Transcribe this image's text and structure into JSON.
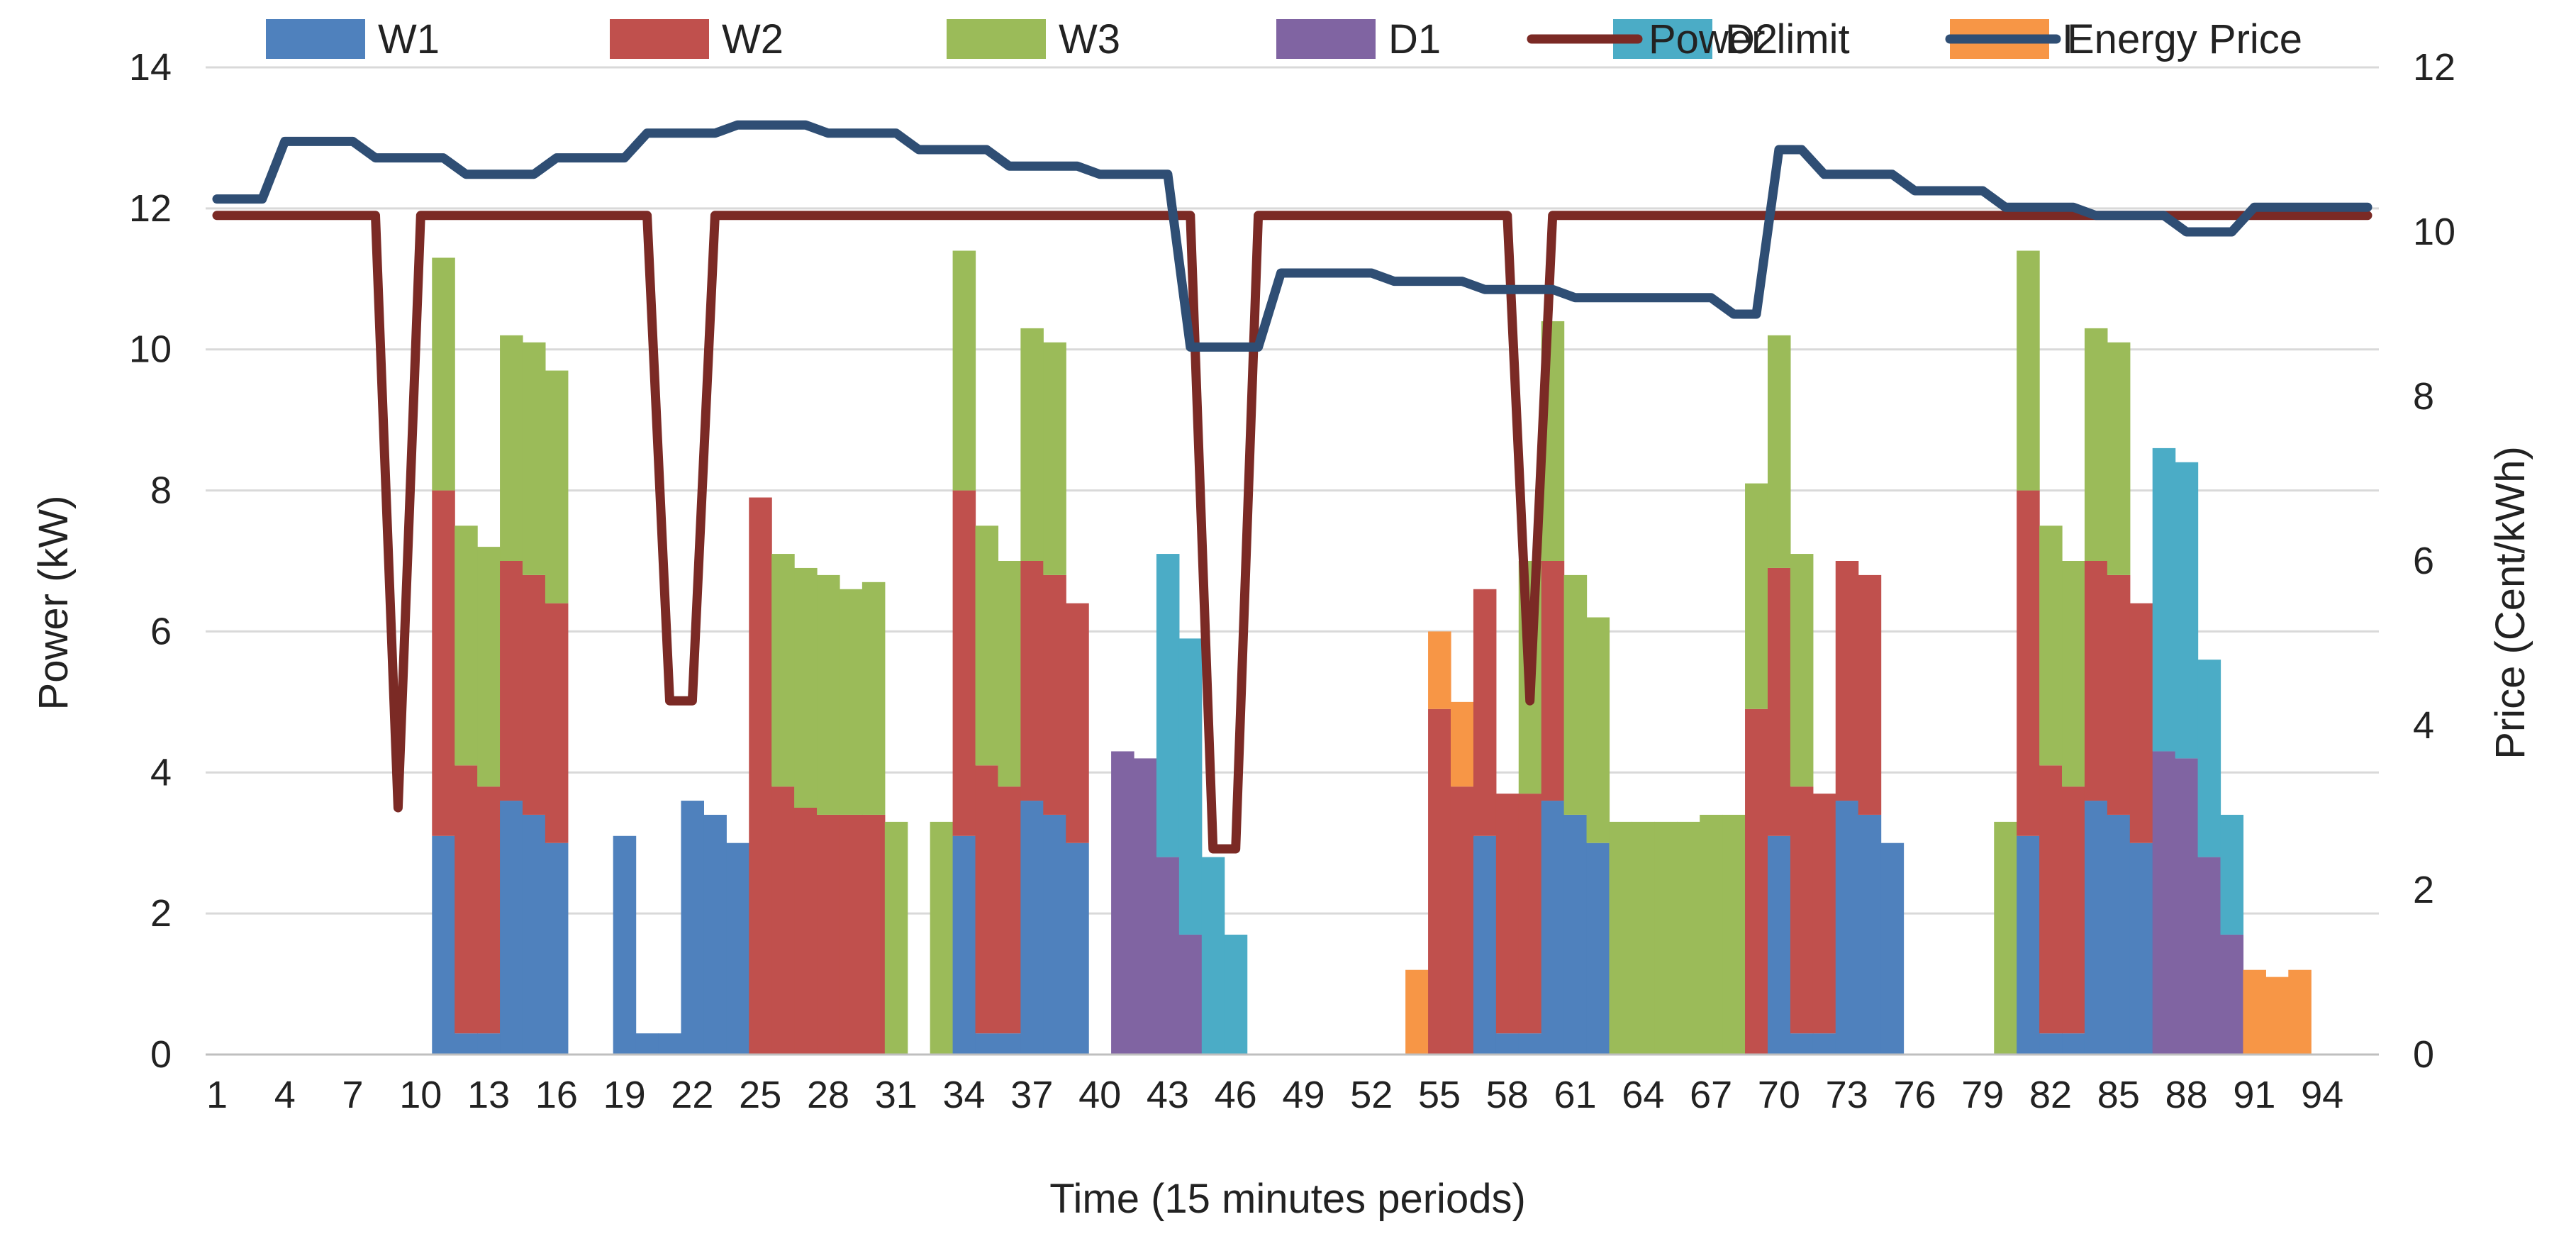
{
  "chart_data": {
    "type": "bar",
    "stacked": true,
    "xlabel": "Time (15 minutes periods)",
    "ylabel": "Power (kW)",
    "y2label": "Price (Cent/kWh)",
    "ylim": [
      0,
      14
    ],
    "y2lim": [
      0,
      12
    ],
    "yticks": [
      0,
      2,
      4,
      6,
      8,
      10,
      12,
      14
    ],
    "y2ticks": [
      0,
      2,
      4,
      6,
      8,
      10,
      12
    ],
    "xticks": [
      1,
      4,
      7,
      10,
      13,
      16,
      19,
      22,
      25,
      28,
      31,
      34,
      37,
      40,
      43,
      46,
      49,
      52,
      55,
      58,
      61,
      64,
      67,
      70,
      73,
      76,
      79,
      82,
      85,
      88,
      91,
      94
    ],
    "n_periods": 96,
    "gridlines": true,
    "legend_position": "top",
    "colors": {
      "W1": "#4f81bd",
      "W2": "#c0504d",
      "W3": "#9bbb59",
      "D1": "#8064a2",
      "D2": "#4bacc6",
      "I": "#f79646",
      "Power limit": "#7b2a25",
      "Energy Price": "#2f4e74"
    },
    "series": [
      {
        "name": "W1",
        "kind": "bar",
        "values": [
          0,
          0,
          0,
          0,
          0,
          0,
          0,
          0,
          0,
          0,
          3.1,
          0.3,
          0.3,
          3.6,
          3.4,
          3.0,
          0,
          0,
          3.1,
          0.3,
          0.3,
          3.6,
          3.4,
          3.0,
          0,
          0,
          0,
          0,
          0,
          0,
          0,
          0,
          0,
          3.1,
          0.3,
          0.3,
          3.6,
          3.4,
          3.0,
          0,
          0,
          0,
          0,
          0,
          0,
          0,
          0,
          0,
          0,
          0,
          0,
          0,
          0,
          0,
          0,
          0,
          3.1,
          0.3,
          0.3,
          3.6,
          3.4,
          3.0,
          0,
          0,
          0,
          0,
          0,
          0,
          0,
          3.1,
          0.3,
          0.3,
          3.6,
          3.4,
          3.0,
          0,
          0,
          0,
          0,
          0,
          3.1,
          0.3,
          0.3,
          3.6,
          3.4,
          3.0,
          0,
          0,
          0,
          0,
          0,
          0,
          0,
          0,
          0
        ]
      },
      {
        "name": "W2",
        "kind": "bar",
        "values": [
          0,
          0,
          0,
          0,
          0,
          0,
          0,
          0,
          0,
          0,
          4.9,
          3.8,
          3.5,
          3.4,
          3.4,
          3.4,
          0,
          0,
          0,
          0,
          0,
          0,
          0,
          0,
          7.9,
          3.8,
          3.5,
          3.4,
          3.4,
          3.4,
          0,
          0,
          0,
          4.9,
          3.8,
          3.5,
          3.4,
          3.4,
          3.4,
          0,
          0,
          0,
          0,
          0,
          0,
          0,
          0,
          0,
          0,
          0,
          0,
          0,
          0,
          0,
          4.9,
          3.8,
          3.5,
          3.4,
          3.4,
          3.4,
          0,
          0,
          0,
          0,
          0,
          0,
          0,
          0,
          4.9,
          3.8,
          3.5,
          3.4,
          3.4,
          3.4,
          0,
          0,
          0,
          0,
          0,
          0,
          4.9,
          3.8,
          3.5,
          3.4,
          3.4,
          3.4,
          0,
          0,
          0,
          0,
          0,
          0,
          0,
          0,
          0,
          0
        ]
      },
      {
        "name": "W3",
        "kind": "bar",
        "values": [
          0,
          0,
          0,
          0,
          0,
          0,
          0,
          0,
          0,
          0,
          3.3,
          3.4,
          3.4,
          3.2,
          3.3,
          3.3,
          0,
          0,
          0,
          0,
          0,
          0,
          0,
          0,
          0,
          3.3,
          3.4,
          3.4,
          3.2,
          3.3,
          3.3,
          0,
          3.3,
          3.4,
          3.4,
          3.2,
          3.3,
          3.3,
          0,
          0,
          0,
          0,
          0,
          0,
          0,
          0,
          0,
          0,
          0,
          0,
          0,
          0,
          0,
          0,
          0,
          0,
          0,
          0,
          3.3,
          3.4,
          3.4,
          3.2,
          3.3,
          3.3,
          3.3,
          3.3,
          3.4,
          3.4,
          3.2,
          3.3,
          3.3,
          0,
          0,
          0,
          0,
          0,
          0,
          0,
          0,
          3.3,
          3.4,
          3.4,
          3.2,
          3.3,
          3.3,
          0,
          0,
          0,
          0,
          0,
          0,
          0,
          0,
          0,
          0
        ]
      },
      {
        "name": "D1",
        "kind": "bar",
        "values": [
          0,
          0,
          0,
          0,
          0,
          0,
          0,
          0,
          0,
          0,
          0,
          0,
          0,
          0,
          0,
          0,
          0,
          0,
          0,
          0,
          0,
          0,
          0,
          0,
          0,
          0,
          0,
          0,
          0,
          0,
          0,
          0,
          0,
          0,
          0,
          0,
          0,
          0,
          0,
          0,
          4.3,
          4.2,
          2.8,
          1.7,
          0,
          0,
          0,
          0,
          0,
          0,
          0,
          0,
          0,
          0,
          0,
          0,
          0,
          0,
          0,
          0,
          0,
          0,
          0,
          0,
          0,
          0,
          0,
          0,
          0,
          0,
          0,
          0,
          0,
          0,
          0,
          0,
          0,
          0,
          0,
          0,
          0,
          0,
          0,
          0,
          0,
          0,
          4.3,
          4.2,
          2.8,
          1.7,
          0,
          0,
          0,
          0,
          0,
          0
        ]
      },
      {
        "name": "D2",
        "kind": "bar",
        "values": [
          0,
          0,
          0,
          0,
          0,
          0,
          0,
          0,
          0,
          0,
          0,
          0,
          0,
          0,
          0,
          0,
          0,
          0,
          0,
          0,
          0,
          0,
          0,
          0,
          0,
          0,
          0,
          0,
          0,
          0,
          0,
          0,
          0,
          0,
          0,
          0,
          0,
          0,
          0,
          0,
          0,
          0,
          4.3,
          4.2,
          2.8,
          1.7,
          0,
          0,
          0,
          0,
          0,
          0,
          0,
          0,
          0,
          0,
          0,
          0,
          0,
          0,
          0,
          0,
          0,
          0,
          0,
          0,
          0,
          0,
          0,
          0,
          0,
          0,
          0,
          0,
          0,
          0,
          0,
          0,
          0,
          0,
          0,
          0,
          0,
          0,
          0,
          0,
          4.3,
          4.2,
          2.8,
          1.7,
          0,
          0,
          0,
          0,
          0,
          0
        ]
      },
      {
        "name": "I",
        "kind": "bar",
        "values": [
          0,
          0,
          0,
          0,
          0,
          0,
          0,
          0,
          0,
          0,
          0,
          0,
          0,
          0,
          0,
          0,
          0,
          0,
          0,
          0,
          0,
          0,
          0,
          0,
          0,
          0,
          0,
          0,
          0,
          0,
          0,
          0,
          0,
          0,
          0,
          0,
          0,
          0,
          0,
          0,
          0,
          0,
          0,
          0,
          0,
          0,
          0,
          0,
          0,
          0,
          0,
          0,
          0,
          1.2,
          1.1,
          1.2,
          0,
          0,
          0,
          0,
          0,
          0,
          0,
          0,
          0,
          0,
          0,
          0,
          0,
          0,
          0,
          0,
          0,
          0,
          0,
          0,
          0,
          0,
          0,
          0,
          0,
          0,
          0,
          0,
          0,
          0,
          0,
          0,
          0,
          0,
          1.2,
          1.1,
          1.2,
          0,
          0,
          0
        ]
      },
      {
        "name": "Power limit",
        "kind": "line",
        "axis": "right",
        "values": [
          10.2,
          10.2,
          10.2,
          10.2,
          10.2,
          10.2,
          10.2,
          10.2,
          3.0,
          10.2,
          10.2,
          10.2,
          10.2,
          10.2,
          10.2,
          10.2,
          10.2,
          10.2,
          10.2,
          10.2,
          4.3,
          4.3,
          10.2,
          10.2,
          10.2,
          10.2,
          10.2,
          10.2,
          10.2,
          10.2,
          10.2,
          10.2,
          10.2,
          10.2,
          10.2,
          10.2,
          10.2,
          10.2,
          10.2,
          10.2,
          10.2,
          10.2,
          10.2,
          10.2,
          2.5,
          2.5,
          10.2,
          10.2,
          10.2,
          10.2,
          10.2,
          10.2,
          10.2,
          10.2,
          10.2,
          10.2,
          10.2,
          10.2,
          4.3,
          10.2,
          10.2,
          10.2,
          10.2,
          10.2,
          10.2,
          10.2,
          10.2,
          10.2,
          10.2,
          10.2,
          10.2,
          10.2,
          10.2,
          10.2,
          10.2,
          10.2,
          10.2,
          10.2,
          10.2,
          10.2,
          10.2,
          10.2,
          10.2,
          10.2,
          10.2,
          10.2,
          10.2,
          10.2,
          10.2,
          10.2,
          10.2,
          10.2,
          10.2,
          10.2,
          10.2,
          10.2
        ]
      },
      {
        "name": "Energy Price",
        "kind": "line",
        "axis": "right",
        "values": [
          10.4,
          10.4,
          10.4,
          11.1,
          11.1,
          11.1,
          11.1,
          10.9,
          10.9,
          10.9,
          10.9,
          10.7,
          10.7,
          10.7,
          10.7,
          10.9,
          10.9,
          10.9,
          10.9,
          11.2,
          11.2,
          11.2,
          11.2,
          11.3,
          11.3,
          11.3,
          11.3,
          11.2,
          11.2,
          11.2,
          11.2,
          11.0,
          11.0,
          11.0,
          11.0,
          10.8,
          10.8,
          10.8,
          10.8,
          10.7,
          10.7,
          10.7,
          10.7,
          8.6,
          8.6,
          8.6,
          8.6,
          9.5,
          9.5,
          9.5,
          9.5,
          9.5,
          9.4,
          9.4,
          9.4,
          9.4,
          9.3,
          9.3,
          9.3,
          9.3,
          9.2,
          9.2,
          9.2,
          9.2,
          9.2,
          9.2,
          9.2,
          9.0,
          9.0,
          11.0,
          11.0,
          10.7,
          10.7,
          10.7,
          10.7,
          10.5,
          10.5,
          10.5,
          10.5,
          10.3,
          10.3,
          10.3,
          10.3,
          10.2,
          10.2,
          10.2,
          10.2,
          10.0,
          10.0,
          10.0,
          10.3,
          10.3,
          10.3,
          10.3,
          10.3,
          10.3
        ]
      }
    ]
  }
}
